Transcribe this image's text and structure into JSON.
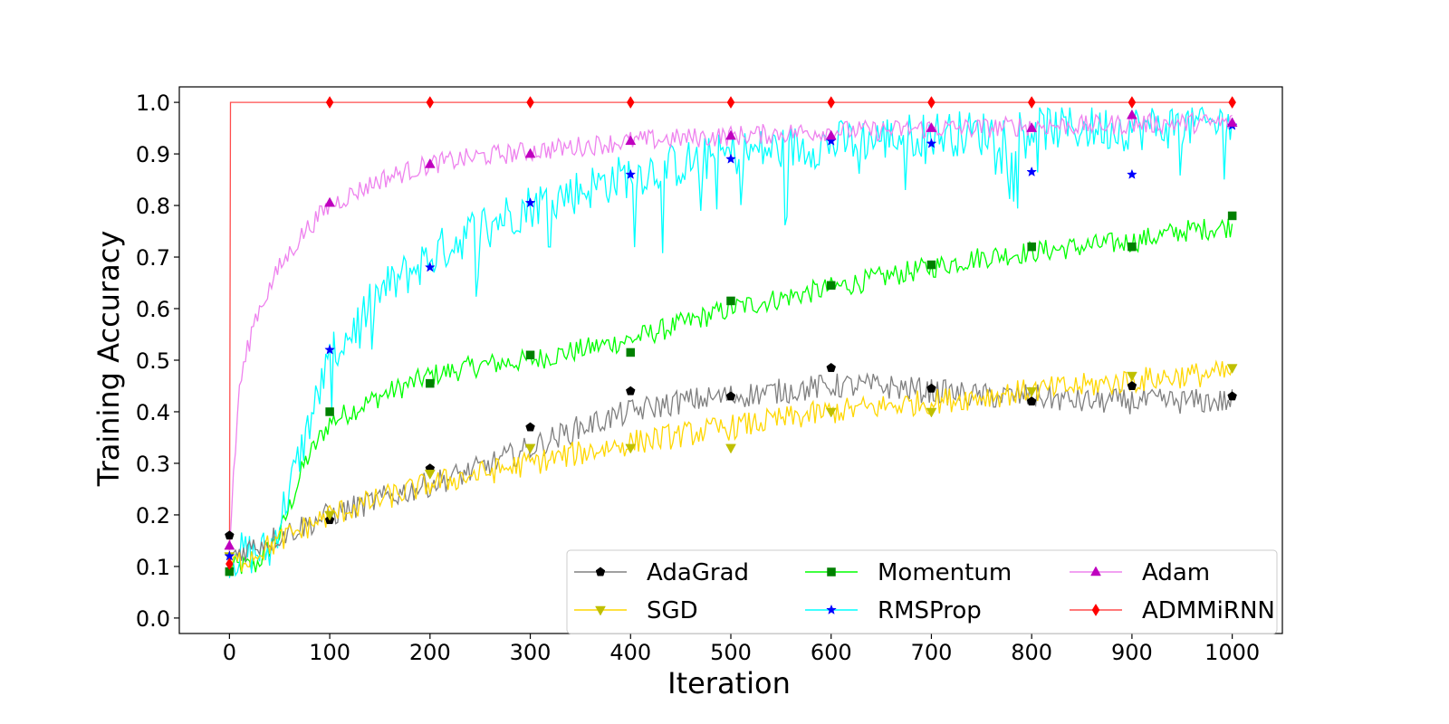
{
  "chart_data": {
    "type": "line",
    "title": "",
    "xlabel": "Iteration",
    "ylabel": "Training Accuracy",
    "xlim": [
      -50,
      1050
    ],
    "ylim": [
      -0.03,
      1.03
    ],
    "x_ticks": [
      0,
      100,
      200,
      300,
      400,
      500,
      600,
      700,
      800,
      900,
      1000
    ],
    "y_ticks": [
      0.0,
      0.1,
      0.2,
      0.3,
      0.4,
      0.5,
      0.6,
      0.7,
      0.8,
      0.9,
      1.0
    ],
    "grid": false,
    "legend_position": "lower-right",
    "legend_columns": 3,
    "marker_x": [
      0,
      100,
      200,
      300,
      400,
      500,
      600,
      700,
      800,
      900,
      1000
    ],
    "series": [
      {
        "name": "AdaGrad",
        "line_color": "#808080",
        "marker_color": "#000000",
        "marker": "pentagon",
        "marker_values": [
          0.16,
          0.19,
          0.29,
          0.37,
          0.44,
          0.43,
          0.485,
          0.445,
          0.42,
          0.45,
          0.43
        ],
        "curve": {
          "x": [
            0,
            50,
            100,
            150,
            200,
            250,
            300,
            350,
            400,
            450,
            500,
            550,
            600,
            650,
            700,
            750,
            800,
            850,
            900,
            950,
            1000
          ],
          "y": [
            0.12,
            0.16,
            0.2,
            0.23,
            0.26,
            0.29,
            0.33,
            0.37,
            0.4,
            0.42,
            0.43,
            0.44,
            0.45,
            0.45,
            0.44,
            0.43,
            0.43,
            0.42,
            0.42,
            0.42,
            0.42
          ]
        }
      },
      {
        "name": "SGD",
        "line_color": "#ffd700",
        "marker_color": "#bfbf00",
        "marker": "triangle-down",
        "marker_values": [
          0.12,
          0.2,
          0.28,
          0.33,
          0.33,
          0.33,
          0.4,
          0.4,
          0.44,
          0.47,
          0.485
        ],
        "curve": {
          "x": [
            0,
            50,
            100,
            150,
            200,
            250,
            300,
            350,
            400,
            450,
            500,
            550,
            600,
            650,
            700,
            750,
            800,
            850,
            900,
            950,
            1000
          ],
          "y": [
            0.1,
            0.15,
            0.2,
            0.23,
            0.26,
            0.28,
            0.3,
            0.32,
            0.34,
            0.355,
            0.37,
            0.385,
            0.4,
            0.41,
            0.42,
            0.43,
            0.44,
            0.45,
            0.46,
            0.47,
            0.475
          ]
        }
      },
      {
        "name": "Momentum",
        "line_color": "#00ff00",
        "marker_color": "#008000",
        "marker": "square",
        "marker_values": [
          0.09,
          0.4,
          0.455,
          0.51,
          0.515,
          0.615,
          0.645,
          0.685,
          0.72,
          0.72,
          0.78
        ],
        "curve": {
          "x": [
            0,
            25,
            50,
            75,
            100,
            150,
            200,
            250,
            300,
            350,
            400,
            450,
            500,
            550,
            600,
            650,
            700,
            750,
            800,
            850,
            900,
            950,
            1000
          ],
          "y": [
            0.1,
            0.1,
            0.16,
            0.3,
            0.38,
            0.43,
            0.47,
            0.49,
            0.5,
            0.52,
            0.54,
            0.57,
            0.6,
            0.62,
            0.64,
            0.66,
            0.68,
            0.7,
            0.71,
            0.72,
            0.73,
            0.75,
            0.76
          ]
        }
      },
      {
        "name": "RMSProp",
        "line_color": "#00ffff",
        "marker_color": "#0000ff",
        "marker": "star",
        "marker_values": [
          0.12,
          0.52,
          0.68,
          0.805,
          0.86,
          0.89,
          0.925,
          0.92,
          0.865,
          0.86,
          0.955
        ],
        "curve": {
          "x": [
            0,
            40,
            60,
            80,
            100,
            150,
            200,
            250,
            300,
            350,
            400,
            450,
            500,
            550,
            600,
            650,
            700,
            750,
            800,
            850,
            900,
            950,
            1000
          ],
          "y": [
            0.12,
            0.13,
            0.25,
            0.38,
            0.5,
            0.63,
            0.7,
            0.76,
            0.8,
            0.83,
            0.86,
            0.88,
            0.9,
            0.91,
            0.92,
            0.93,
            0.94,
            0.94,
            0.95,
            0.95,
            0.95,
            0.955,
            0.96
          ]
        }
      },
      {
        "name": "Adam",
        "line_color": "#ee82ee",
        "marker_color": "#bf00bf",
        "marker": "triangle-up",
        "marker_values": [
          0.14,
          0.805,
          0.88,
          0.9,
          0.925,
          0.935,
          0.935,
          0.95,
          0.95,
          0.975,
          0.96
        ],
        "curve": {
          "x": [
            0,
            5,
            10,
            25,
            50,
            75,
            100,
            150,
            200,
            250,
            300,
            350,
            400,
            450,
            500,
            550,
            600,
            650,
            700,
            750,
            800,
            850,
            900,
            950,
            1000
          ],
          "y": [
            0.14,
            0.3,
            0.45,
            0.58,
            0.68,
            0.75,
            0.8,
            0.85,
            0.88,
            0.895,
            0.905,
            0.915,
            0.925,
            0.93,
            0.935,
            0.94,
            0.945,
            0.945,
            0.95,
            0.95,
            0.955,
            0.955,
            0.958,
            0.96,
            0.96
          ]
        }
      },
      {
        "name": "ADMMiRNN",
        "line_color": "#ff4d4d",
        "marker_color": "#ff0000",
        "marker": "thin-diamond",
        "marker_values": [
          0.105,
          1.0,
          1.0,
          1.0,
          1.0,
          1.0,
          1.0,
          1.0,
          1.0,
          1.0,
          1.0
        ],
        "curve": {
          "x": [
            0,
            1,
            1000
          ],
          "y": [
            0.105,
            1.0,
            1.0
          ]
        }
      }
    ]
  }
}
